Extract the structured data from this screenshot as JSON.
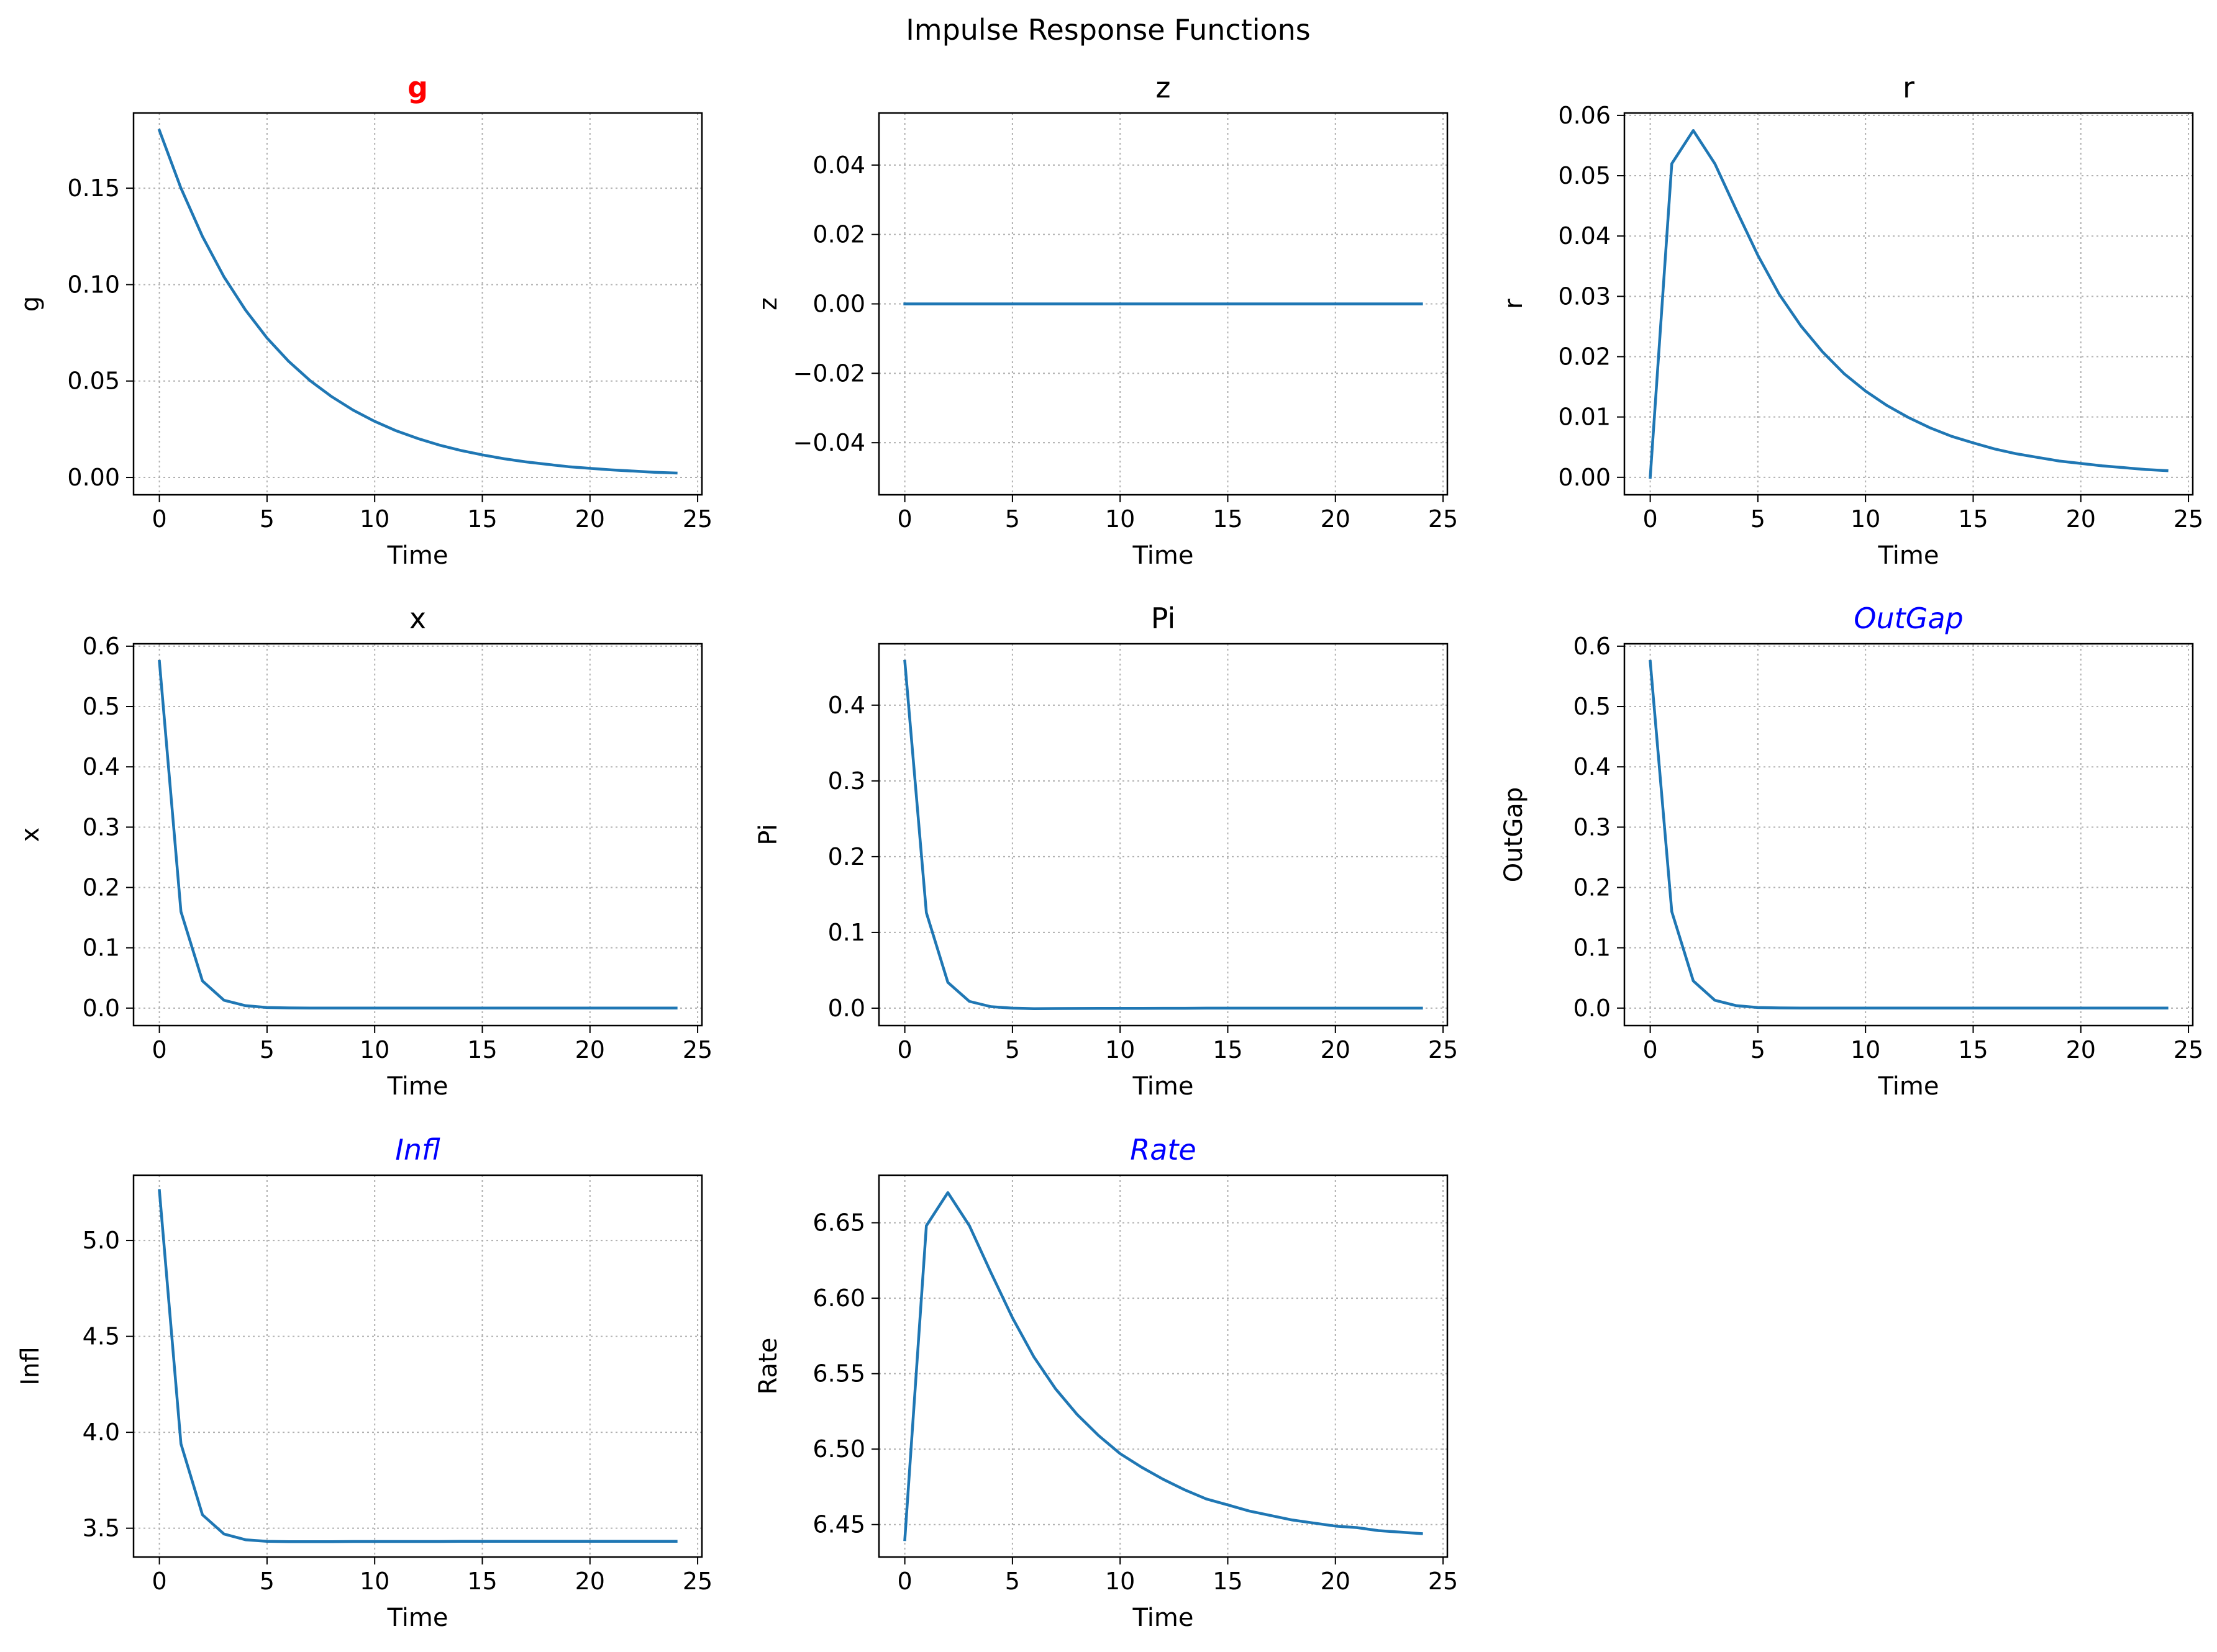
{
  "figure": {
    "title": "Impulse Response Functions"
  },
  "style": {
    "line_color": "#1f77b4",
    "grid_color": "#b0b0b0",
    "bold_title_color": "#ff0000",
    "italic_title_color": "#0000ff"
  },
  "chart_data": [
    {
      "type": "line",
      "title": "g",
      "title_style": "bold-red",
      "xlabel": "Time",
      "ylabel": "g",
      "xlim": [
        -1.2,
        25.2
      ],
      "ylim": [
        -0.009,
        0.189
      ],
      "xticks": [
        0,
        5,
        10,
        15,
        20,
        25
      ],
      "xtick_labels": [
        "0",
        "5",
        "10",
        "15",
        "20",
        "25"
      ],
      "yticks": [
        0,
        0.05,
        0.1,
        0.15
      ],
      "ytick_labels": [
        "0.00",
        "0.05",
        "0.10",
        "0.15"
      ],
      "grid": true,
      "x": [
        0,
        1,
        2,
        3,
        4,
        5,
        6,
        7,
        8,
        9,
        10,
        11,
        12,
        13,
        14,
        15,
        16,
        17,
        18,
        19,
        20,
        21,
        22,
        23,
        24
      ],
      "y": [
        0.18,
        0.15,
        0.125,
        0.104,
        0.0868,
        0.0723,
        0.0603,
        0.0502,
        0.0419,
        0.0349,
        0.0291,
        0.0242,
        0.0202,
        0.0168,
        0.014,
        0.0117,
        0.0097,
        0.0081,
        0.0068,
        0.0056,
        0.0047,
        0.0039,
        0.0033,
        0.0027,
        0.0023
      ]
    },
    {
      "type": "line",
      "title": "z",
      "title_style": "normal",
      "xlabel": "Time",
      "ylabel": "z",
      "xlim": [
        -1.2,
        25.2
      ],
      "ylim": [
        -0.055,
        0.055
      ],
      "xticks": [
        0,
        5,
        10,
        15,
        20,
        25
      ],
      "xtick_labels": [
        "0",
        "5",
        "10",
        "15",
        "20",
        "25"
      ],
      "yticks": [
        -0.04,
        -0.02,
        0,
        0.02,
        0.04
      ],
      "ytick_labels": [
        "−0.04",
        "−0.02",
        "0.00",
        "0.02",
        "0.04"
      ],
      "grid": true,
      "x": [
        0,
        1,
        2,
        3,
        4,
        5,
        6,
        7,
        8,
        9,
        10,
        11,
        12,
        13,
        14,
        15,
        16,
        17,
        18,
        19,
        20,
        21,
        22,
        23,
        24
      ],
      "y": [
        0,
        0,
        0,
        0,
        0,
        0,
        0,
        0,
        0,
        0,
        0,
        0,
        0,
        0,
        0,
        0,
        0,
        0,
        0,
        0,
        0,
        0,
        0,
        0,
        0
      ]
    },
    {
      "type": "line",
      "title": "r",
      "title_style": "normal",
      "xlabel": "Time",
      "ylabel": "r",
      "xlim": [
        -1.2,
        25.2
      ],
      "ylim": [
        -0.0029,
        0.0604
      ],
      "xticks": [
        0,
        5,
        10,
        15,
        20,
        25
      ],
      "xtick_labels": [
        "0",
        "5",
        "10",
        "15",
        "20",
        "25"
      ],
      "yticks": [
        0,
        0.01,
        0.02,
        0.03,
        0.04,
        0.05,
        0.06
      ],
      "ytick_labels": [
        "0.00",
        "0.01",
        "0.02",
        "0.03",
        "0.04",
        "0.05",
        "0.06"
      ],
      "grid": true,
      "x": [
        0,
        1,
        2,
        3,
        4,
        5,
        6,
        7,
        8,
        9,
        10,
        11,
        12,
        13,
        14,
        15,
        16,
        17,
        18,
        19,
        20,
        21,
        22,
        23,
        24
      ],
      "y": [
        0,
        0.052,
        0.0575,
        0.052,
        0.0443,
        0.0368,
        0.0303,
        0.0251,
        0.0208,
        0.0172,
        0.0143,
        0.0119,
        0.0099,
        0.0082,
        0.0068,
        0.0057,
        0.0047,
        0.0039,
        0.0033,
        0.0027,
        0.0023,
        0.0019,
        0.0016,
        0.0013,
        0.0011
      ]
    },
    {
      "type": "line",
      "title": "x",
      "title_style": "normal",
      "xlabel": "Time",
      "ylabel": "x",
      "xlim": [
        -1.2,
        25.2
      ],
      "ylim": [
        -0.029,
        0.604
      ],
      "xticks": [
        0,
        5,
        10,
        15,
        20,
        25
      ],
      "xtick_labels": [
        "0",
        "5",
        "10",
        "15",
        "20",
        "25"
      ],
      "yticks": [
        0,
        0.1,
        0.2,
        0.3,
        0.4,
        0.5,
        0.6
      ],
      "ytick_labels": [
        "0.0",
        "0.1",
        "0.2",
        "0.3",
        "0.4",
        "0.5",
        "0.6"
      ],
      "grid": true,
      "x": [
        0,
        1,
        2,
        3,
        4,
        5,
        6,
        7,
        8,
        9,
        10,
        11,
        12,
        13,
        14,
        15,
        16,
        17,
        18,
        19,
        20,
        21,
        22,
        23,
        24
      ],
      "y": [
        0.575,
        0.16,
        0.045,
        0.013,
        0.004,
        0.001,
        0.0003,
        0,
        0,
        0,
        0,
        0,
        0,
        0,
        0,
        0,
        0,
        0,
        0,
        0,
        0,
        0,
        0,
        0,
        0
      ]
    },
    {
      "type": "line",
      "title": "Pi",
      "title_style": "normal",
      "xlabel": "Time",
      "ylabel": "Pi",
      "xlim": [
        -1.2,
        25.2
      ],
      "ylim": [
        -0.023,
        0.481
      ],
      "xticks": [
        0,
        5,
        10,
        15,
        20,
        25
      ],
      "xtick_labels": [
        "0",
        "5",
        "10",
        "15",
        "20",
        "25"
      ],
      "yticks": [
        0,
        0.1,
        0.2,
        0.3,
        0.4
      ],
      "ytick_labels": [
        "0.0",
        "0.1",
        "0.2",
        "0.3",
        "0.4"
      ],
      "grid": true,
      "x": [
        0,
        1,
        2,
        3,
        4,
        5,
        6,
        7,
        8,
        9,
        10,
        11,
        12,
        13,
        14,
        15,
        16,
        17,
        18,
        19,
        20,
        21,
        22,
        23,
        24
      ],
      "y": [
        0.458,
        0.126,
        0.034,
        0.009,
        0.002,
        0,
        -0.0006,
        -0.0005,
        -0.0004,
        -0.0003,
        -0.0002,
        -0.0002,
        -0.0001,
        -0.0001,
        0,
        0,
        0,
        0,
        0,
        0,
        0,
        0,
        0,
        0,
        0
      ]
    },
    {
      "type": "line",
      "title": "OutGap",
      "title_style": "italic-blue",
      "xlabel": "Time",
      "ylabel": "OutGap",
      "xlim": [
        -1.2,
        25.2
      ],
      "ylim": [
        -0.029,
        0.604
      ],
      "xticks": [
        0,
        5,
        10,
        15,
        20,
        25
      ],
      "xtick_labels": [
        "0",
        "5",
        "10",
        "15",
        "20",
        "25"
      ],
      "yticks": [
        0,
        0.1,
        0.2,
        0.3,
        0.4,
        0.5,
        0.6
      ],
      "ytick_labels": [
        "0.0",
        "0.1",
        "0.2",
        "0.3",
        "0.4",
        "0.5",
        "0.6"
      ],
      "grid": true,
      "x": [
        0,
        1,
        2,
        3,
        4,
        5,
        6,
        7,
        8,
        9,
        10,
        11,
        12,
        13,
        14,
        15,
        16,
        17,
        18,
        19,
        20,
        21,
        22,
        23,
        24
      ],
      "y": [
        0.575,
        0.16,
        0.045,
        0.013,
        0.004,
        0.001,
        0.0003,
        0,
        0,
        0,
        0,
        0,
        0,
        0,
        0,
        0,
        0,
        0,
        0,
        0,
        0,
        0,
        0,
        0,
        0
      ]
    },
    {
      "type": "line",
      "title": "Infl",
      "title_style": "italic-blue",
      "xlabel": "Time",
      "ylabel": "Infl",
      "xlim": [
        -1.2,
        25.2
      ],
      "ylim": [
        3.35,
        5.34
      ],
      "xticks": [
        0,
        5,
        10,
        15,
        20,
        25
      ],
      "xtick_labels": [
        "0",
        "5",
        "10",
        "15",
        "20",
        "25"
      ],
      "yticks": [
        3.5,
        4.0,
        4.5,
        5.0
      ],
      "ytick_labels": [
        "3.5",
        "4.0",
        "4.5",
        "5.0"
      ],
      "grid": true,
      "x": [
        0,
        1,
        2,
        3,
        4,
        5,
        6,
        7,
        8,
        9,
        10,
        11,
        12,
        13,
        14,
        15,
        16,
        17,
        18,
        19,
        20,
        21,
        22,
        23,
        24
      ],
      "y": [
        5.26,
        3.94,
        3.57,
        3.47,
        3.44,
        3.432,
        3.43,
        3.43,
        3.43,
        3.431,
        3.431,
        3.431,
        3.431,
        3.431,
        3.432,
        3.432,
        3.432,
        3.432,
        3.432,
        3.432,
        3.432,
        3.432,
        3.432,
        3.432,
        3.432
      ]
    },
    {
      "type": "line",
      "title": "Rate",
      "title_style": "italic-blue",
      "xlabel": "Time",
      "ylabel": "Rate",
      "xlim": [
        -1.2,
        25.2
      ],
      "ylim": [
        6.4285,
        6.6815
      ],
      "xticks": [
        0,
        5,
        10,
        15,
        20,
        25
      ],
      "xtick_labels": [
        "0",
        "5",
        "10",
        "15",
        "20",
        "25"
      ],
      "yticks": [
        6.45,
        6.5,
        6.55,
        6.6,
        6.65
      ],
      "ytick_labels": [
        "6.45",
        "6.50",
        "6.55",
        "6.60",
        "6.65"
      ],
      "grid": true,
      "x": [
        0,
        1,
        2,
        3,
        4,
        5,
        6,
        7,
        8,
        9,
        10,
        11,
        12,
        13,
        14,
        15,
        16,
        17,
        18,
        19,
        20,
        21,
        22,
        23,
        24
      ],
      "y": [
        6.44,
        6.648,
        6.67,
        6.648,
        6.617,
        6.587,
        6.561,
        6.54,
        6.523,
        6.509,
        6.497,
        6.488,
        6.48,
        6.473,
        6.467,
        6.463,
        6.459,
        6.456,
        6.453,
        6.451,
        6.449,
        6.448,
        6.446,
        6.445,
        6.444
      ]
    }
  ]
}
